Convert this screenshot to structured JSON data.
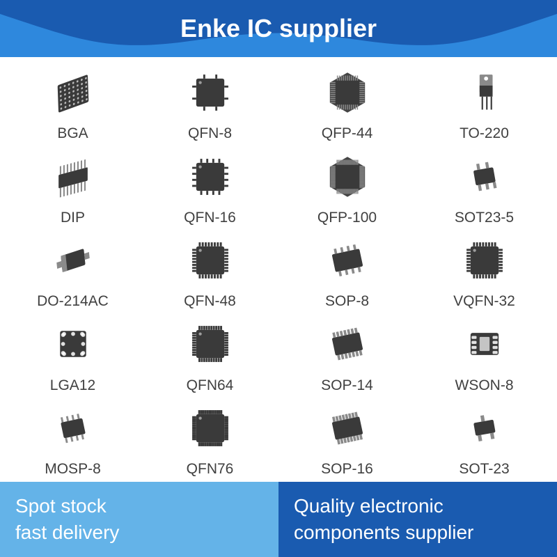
{
  "header": {
    "title": "Enke IC supplier",
    "bg_body": "#1a5bb0",
    "bg_edge": "#2e88dd",
    "text_color": "#ffffff",
    "title_fontsize": 36
  },
  "grid": {
    "columns": 4,
    "rows": 5,
    "label_fontsize": 21,
    "label_color": "#404040",
    "chip_fill": "#3a3a3a",
    "chip_fill_light": "#8a8a8a",
    "background": "#ffffff",
    "items": [
      {
        "label": "BGA",
        "icon": "bga"
      },
      {
        "label": "QFN-8",
        "icon": "qfn8"
      },
      {
        "label": "QFP-44",
        "icon": "qfp44"
      },
      {
        "label": "TO-220",
        "icon": "to220"
      },
      {
        "label": "DIP",
        "icon": "dip"
      },
      {
        "label": "QFN-16",
        "icon": "qfn16"
      },
      {
        "label": "QFP-100",
        "icon": "qfp100"
      },
      {
        "label": "SOT23-5",
        "icon": "sot235"
      },
      {
        "label": "DO-214AC",
        "icon": "do214"
      },
      {
        "label": "QFN-48",
        "icon": "qfn48"
      },
      {
        "label": "SOP-8",
        "icon": "sop8"
      },
      {
        "label": "VQFN-32",
        "icon": "vqfn32"
      },
      {
        "label": "LGA12",
        "icon": "lga12"
      },
      {
        "label": "QFN64",
        "icon": "qfn64"
      },
      {
        "label": "SOP-14",
        "icon": "sop14"
      },
      {
        "label": "WSON-8",
        "icon": "wson8"
      },
      {
        "label": "MOSP-8",
        "icon": "mosp8"
      },
      {
        "label": "QFN76",
        "icon": "qfn76"
      },
      {
        "label": "SOP-16",
        "icon": "sop16"
      },
      {
        "label": "SOT-23",
        "icon": "sot23"
      }
    ]
  },
  "footer": {
    "left_bg": "#64b3e8",
    "right_bg": "#1a5bb0",
    "text_color": "#ffffff",
    "fontsize": 28,
    "left_line1": "Spot stock",
    "left_line2": "fast delivery",
    "right_line1": "Quality electronic",
    "right_line2": "components supplier"
  }
}
